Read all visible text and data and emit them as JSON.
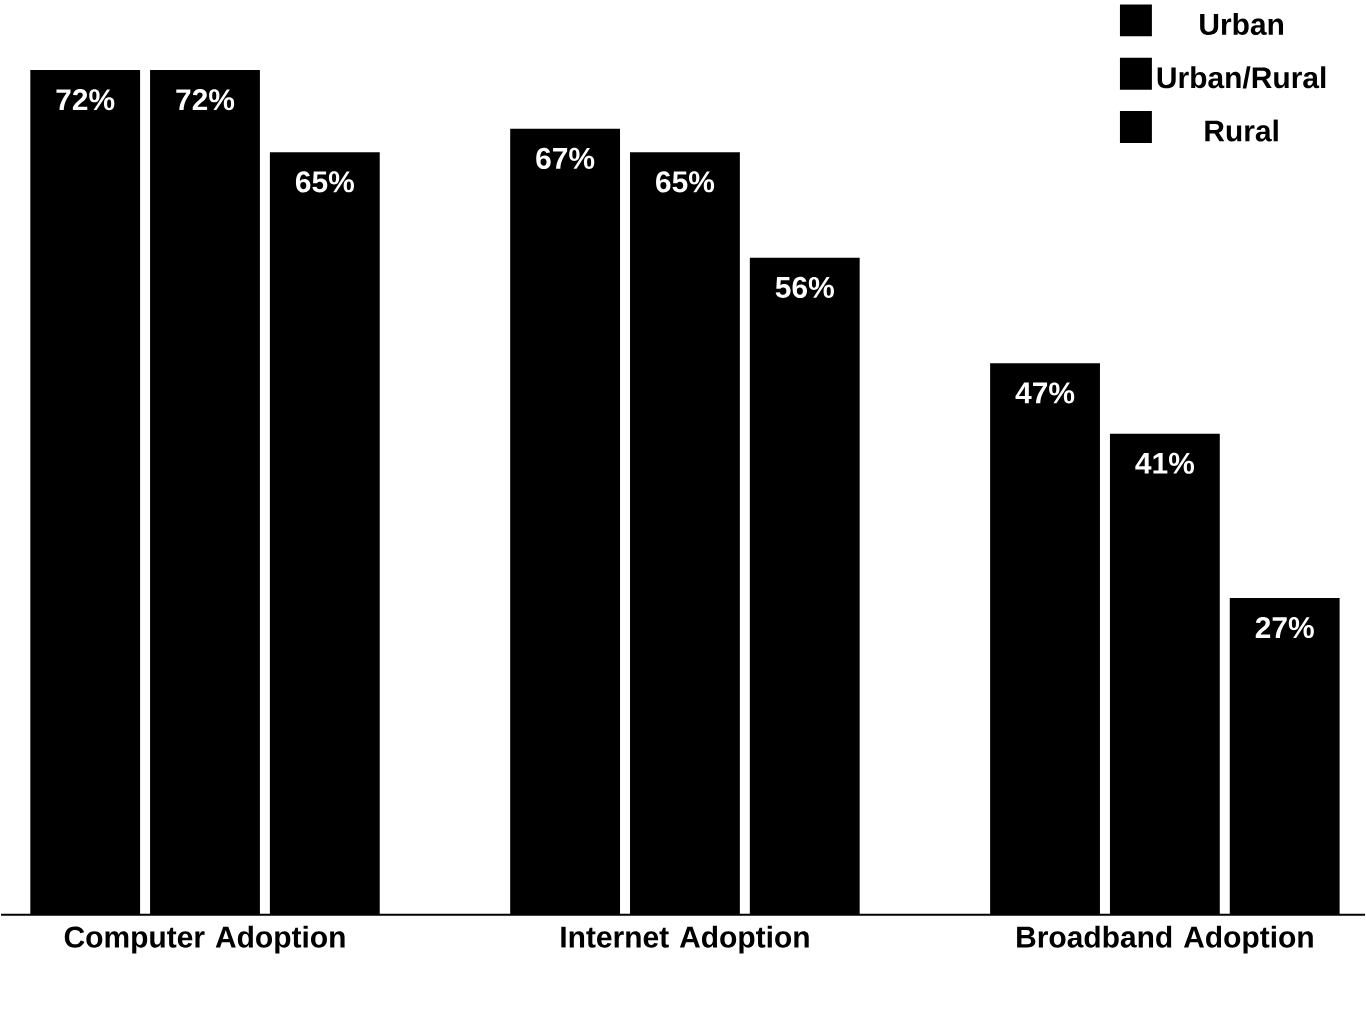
{
  "chart_data": {
    "type": "bar",
    "categories": [
      "Computer Adoption",
      "Internet Adoption",
      "Broadband Adoption"
    ],
    "series": [
      {
        "name": "Urban",
        "color": "#000000",
        "values": [
          72,
          67,
          47
        ],
        "value_labels": [
          "72%",
          "67%",
          "47%"
        ]
      },
      {
        "name": "Urban/Rural",
        "color": "#000000",
        "values": [
          72,
          65,
          41
        ],
        "value_labels": [
          "72%",
          "65%",
          "41%"
        ]
      },
      {
        "name": "Rural",
        "color": "#000000",
        "values": [
          65,
          56,
          27
        ],
        "value_labels": [
          "65%",
          "56%",
          "27%"
        ]
      }
    ],
    "legend": "top right"
  }
}
